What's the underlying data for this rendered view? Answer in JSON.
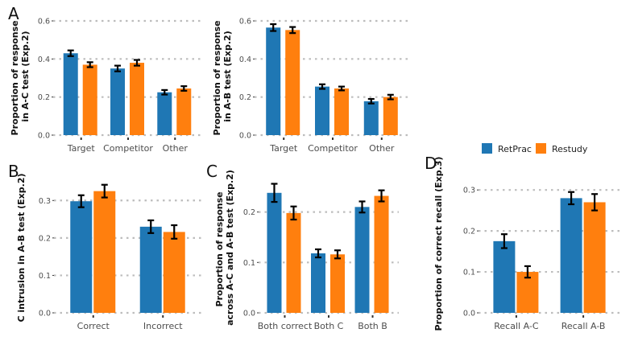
{
  "legend": {
    "entries": [
      {
        "name": "RetPrac",
        "color": "#1F77B4"
      },
      {
        "name": "Restudy",
        "color": "#FF7F0E"
      }
    ]
  },
  "chart_data": [
    {
      "id": "A1",
      "panel_label": "A",
      "type": "bar",
      "ylabel_lines": [
        "Proportion of response",
        "in A-C test (Exp.2)"
      ],
      "categories": [
        "Target",
        "Competitor",
        "Other"
      ],
      "series": [
        {
          "name": "RetPrac",
          "values": [
            0.43,
            0.35,
            0.225
          ],
          "errors": [
            0.015,
            0.015,
            0.012
          ]
        },
        {
          "name": "Restudy",
          "values": [
            0.37,
            0.38,
            0.245
          ],
          "errors": [
            0.013,
            0.015,
            0.012
          ]
        }
      ],
      "ylim": [
        0,
        0.6
      ],
      "yticks": [
        0.0,
        0.2,
        0.4,
        0.6
      ],
      "yticklabels": [
        "0.0",
        "0.2",
        "0.4",
        "0.6"
      ]
    },
    {
      "id": "A2",
      "panel_label": "",
      "type": "bar",
      "ylabel_lines": [
        "Proportion of response",
        "in A-B test (Exp.2)"
      ],
      "categories": [
        "Target",
        "Competitor",
        "Other"
      ],
      "series": [
        {
          "name": "RetPrac",
          "values": [
            0.565,
            0.255,
            0.178
          ],
          "errors": [
            0.018,
            0.012,
            0.012
          ]
        },
        {
          "name": "Restudy",
          "values": [
            0.552,
            0.245,
            0.2
          ],
          "errors": [
            0.016,
            0.01,
            0.012
          ]
        }
      ],
      "ylim": [
        0,
        0.6
      ],
      "yticks": [
        0.0,
        0.2,
        0.4,
        0.6
      ],
      "yticklabels": [
        "0.0",
        "0.2",
        "0.4",
        "0.6"
      ]
    },
    {
      "id": "B",
      "panel_label": "B",
      "type": "bar",
      "ylabel_lines": [
        "C intrusion in A-B test (Exp.2)"
      ],
      "categories": [
        "Correct",
        "Incorrect"
      ],
      "series": [
        {
          "name": "RetPrac",
          "values": [
            0.298,
            0.23
          ],
          "errors": [
            0.016,
            0.017
          ]
        },
        {
          "name": "Restudy",
          "values": [
            0.325,
            0.216
          ],
          "errors": [
            0.017,
            0.018
          ]
        }
      ],
      "ylim": [
        0,
        0.35
      ],
      "yticks": [
        0.0,
        0.1,
        0.2,
        0.3
      ],
      "yticklabels": [
        "0.0",
        "0.1",
        "0.2",
        "0.3"
      ]
    },
    {
      "id": "C",
      "panel_label": "C",
      "type": "bar",
      "ylabel_lines": [
        "Proportion of response",
        "across A-C and A-B test (Exp.2)"
      ],
      "categories": [
        "Both correct",
        "Both C",
        "Both B"
      ],
      "series": [
        {
          "name": "RetPrac",
          "values": [
            0.238,
            0.118,
            0.21
          ],
          "errors": [
            0.018,
            0.008,
            0.011
          ]
        },
        {
          "name": "Restudy",
          "values": [
            0.198,
            0.116,
            0.232
          ],
          "errors": [
            0.013,
            0.008,
            0.011
          ]
        }
      ],
      "ylim": [
        0,
        0.26
      ],
      "yticks": [
        0.0,
        0.1,
        0.2
      ],
      "yticklabels": [
        "0.0",
        "0.1",
        "0.2"
      ]
    },
    {
      "id": "D",
      "panel_label": "D",
      "type": "bar",
      "ylabel_lines": [
        "Proportion of correct recall (Exp.3)"
      ],
      "categories": [
        "Recall A-C",
        "Recall A-B"
      ],
      "series": [
        {
          "name": "RetPrac",
          "values": [
            0.175,
            0.28
          ],
          "errors": [
            0.017,
            0.015
          ]
        },
        {
          "name": "Restudy",
          "values": [
            0.1,
            0.27
          ],
          "errors": [
            0.014,
            0.02
          ]
        }
      ],
      "ylim": [
        0,
        0.32
      ],
      "yticks": [
        0.0,
        0.1,
        0.2,
        0.3
      ],
      "yticklabels": [
        "0.0",
        "0.1",
        "0.2",
        "0.3"
      ]
    }
  ]
}
